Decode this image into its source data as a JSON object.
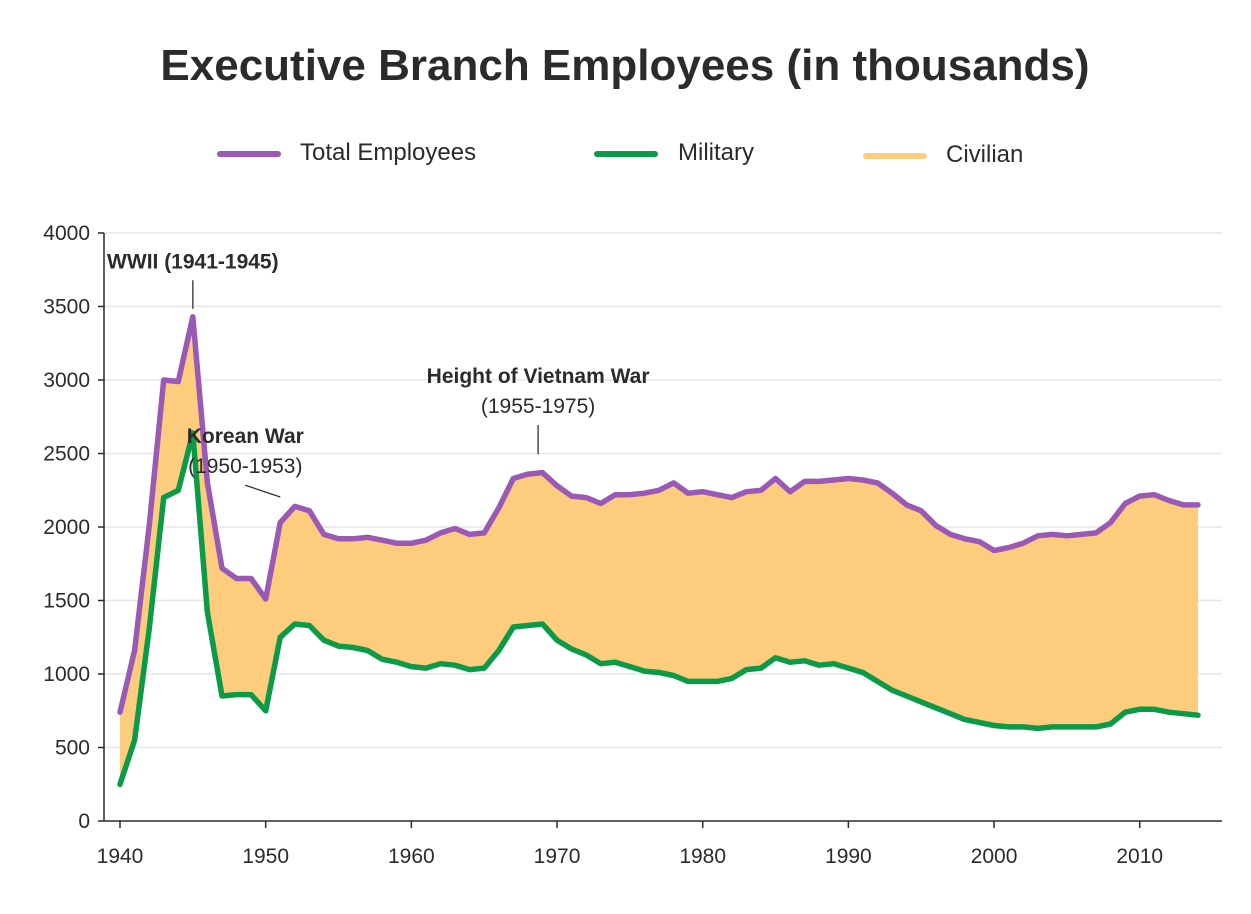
{
  "chart_data": {
    "type": "line",
    "title": "Executive Branch Employees (in thousands)",
    "xlabel": "",
    "ylabel": "",
    "xlim": [
      1940,
      2014
    ],
    "ylim": [
      0,
      4000
    ],
    "x_ticks": [
      1940,
      1950,
      1960,
      1970,
      1980,
      1990,
      2000,
      2010
    ],
    "y_ticks": [
      0,
      500,
      1000,
      1500,
      2000,
      2500,
      3000,
      3500,
      4000
    ],
    "grid": "horizontal",
    "legend_position": "top",
    "colors": {
      "total": "#9b59b6",
      "military": "#0a9a48",
      "civilian": "#fdcd7d",
      "grid": "#e6e6e6",
      "axis": "#2b2b2b"
    },
    "x": [
      1940,
      1941,
      1942,
      1943,
      1944,
      1945,
      1946,
      1947,
      1948,
      1949,
      1950,
      1951,
      1952,
      1953,
      1954,
      1955,
      1956,
      1957,
      1958,
      1959,
      1960,
      1961,
      1962,
      1963,
      1964,
      1965,
      1966,
      1967,
      1968,
      1969,
      1970,
      1971,
      1972,
      1973,
      1974,
      1975,
      1976,
      1977,
      1978,
      1979,
      1980,
      1981,
      1982,
      1983,
      1984,
      1985,
      1986,
      1987,
      1988,
      1989,
      1990,
      1991,
      1992,
      1993,
      1994,
      1995,
      1996,
      1997,
      1998,
      1999,
      2000,
      2001,
      2002,
      2003,
      2004,
      2005,
      2006,
      2007,
      2008,
      2009,
      2010,
      2011,
      2012,
      2013,
      2014
    ],
    "series": [
      {
        "key": "total",
        "name": "Total Employees",
        "values": [
          740,
          1160,
          2000,
          3000,
          2990,
          3430,
          2300,
          1720,
          1650,
          1650,
          1510,
          2030,
          2140,
          2110,
          1950,
          1920,
          1920,
          1930,
          1910,
          1890,
          1890,
          1910,
          1960,
          1990,
          1950,
          1960,
          2130,
          2330,
          2360,
          2370,
          2280,
          2210,
          2200,
          2160,
          2220,
          2220,
          2230,
          2250,
          2300,
          2230,
          2240,
          2220,
          2200,
          2240,
          2250,
          2330,
          2240,
          2310,
          2310,
          2320,
          2330,
          2320,
          2300,
          2230,
          2150,
          2110,
          2010,
          1950,
          1920,
          1900,
          1840,
          1860,
          1890,
          1940,
          1950,
          1940,
          1950,
          1960,
          2030,
          2160,
          2210,
          2220,
          2180,
          2150,
          2150
        ]
      },
      {
        "key": "military",
        "name": "Military",
        "values": [
          250,
          550,
          1300,
          2200,
          2250,
          2640,
          1420,
          850,
          860,
          860,
          750,
          1250,
          1340,
          1330,
          1230,
          1190,
          1180,
          1160,
          1100,
          1080,
          1050,
          1040,
          1070,
          1060,
          1030,
          1040,
          1160,
          1320,
          1330,
          1340,
          1230,
          1170,
          1130,
          1070,
          1080,
          1050,
          1020,
          1010,
          990,
          950,
          950,
          950,
          970,
          1030,
          1040,
          1110,
          1080,
          1090,
          1060,
          1070,
          1040,
          1010,
          950,
          890,
          850,
          810,
          770,
          730,
          690,
          670,
          650,
          640,
          640,
          630,
          640,
          640,
          640,
          640,
          660,
          740,
          760,
          760,
          740,
          730,
          720
        ]
      }
    ],
    "area": {
      "name": "Civilian",
      "between": [
        "military",
        "total"
      ]
    },
    "legend": [
      {
        "label": "Total Employees",
        "color": "#9b59b6"
      },
      {
        "label": "Military",
        "color": "#0a9a48"
      },
      {
        "label": "Civilian",
        "color": "#fdcd7d"
      }
    ],
    "annotations": [
      {
        "id": "wwii",
        "lines": [
          "WWII (1941-1945)"
        ],
        "target": [
          1945,
          3430
        ],
        "anchor_x": 1945,
        "anchor_y": 3760
      },
      {
        "id": "korean",
        "lines": [
          "Korean War",
          "(1950-1953)"
        ],
        "target": [
          1951,
          2150
        ],
        "anchor_x": 1948.6,
        "anchor_y": 2570
      },
      {
        "id": "vietnam",
        "lines": [
          "Height of Vietnam War",
          "(1955-1975)"
        ],
        "target": [
          1968.7,
          2440
        ],
        "anchor_x": 1968.7,
        "anchor_y": 2980
      }
    ]
  }
}
